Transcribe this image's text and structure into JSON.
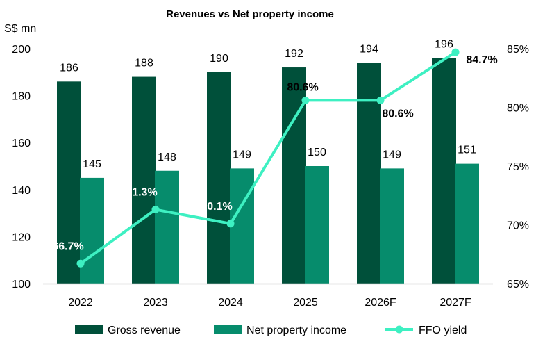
{
  "chart_data": {
    "type": "bar",
    "title": "Revenues vs Net property income",
    "ylabel": "S$ mn",
    "categories": [
      "2022",
      "2023",
      "2024",
      "2025",
      "2026F",
      "2027F"
    ],
    "ylim": [
      100,
      200
    ],
    "yticks": [
      100,
      120,
      140,
      160,
      180,
      200
    ],
    "y2lim": [
      65,
      85
    ],
    "y2ticks": [
      "65%",
      "70%",
      "75%",
      "80%",
      "85%"
    ],
    "grid": false,
    "legend_position": "bottom",
    "series": [
      {
        "name": "Gross revenue",
        "type": "bar",
        "color": "#00503a",
        "values": [
          186,
          188,
          190,
          192,
          194,
          196
        ],
        "labels": [
          "186",
          "188",
          "190",
          "192",
          "194",
          "196"
        ]
      },
      {
        "name": "Net property income",
        "type": "bar",
        "color": "#068c6c",
        "values": [
          145,
          148,
          149,
          150,
          149,
          151
        ],
        "labels": [
          "145",
          "148",
          "149",
          "150",
          "149",
          "151"
        ]
      },
      {
        "name": "FFO yield",
        "type": "line",
        "axis": "right",
        "color": "#3ef0c2",
        "values": [
          66.7,
          71.3,
          70.1,
          80.6,
          80.6,
          84.7
        ],
        "labels": [
          "66.7%",
          "71.3%",
          "70.1%",
          "80.6%",
          "80.6%",
          "84.7%"
        ]
      }
    ]
  }
}
